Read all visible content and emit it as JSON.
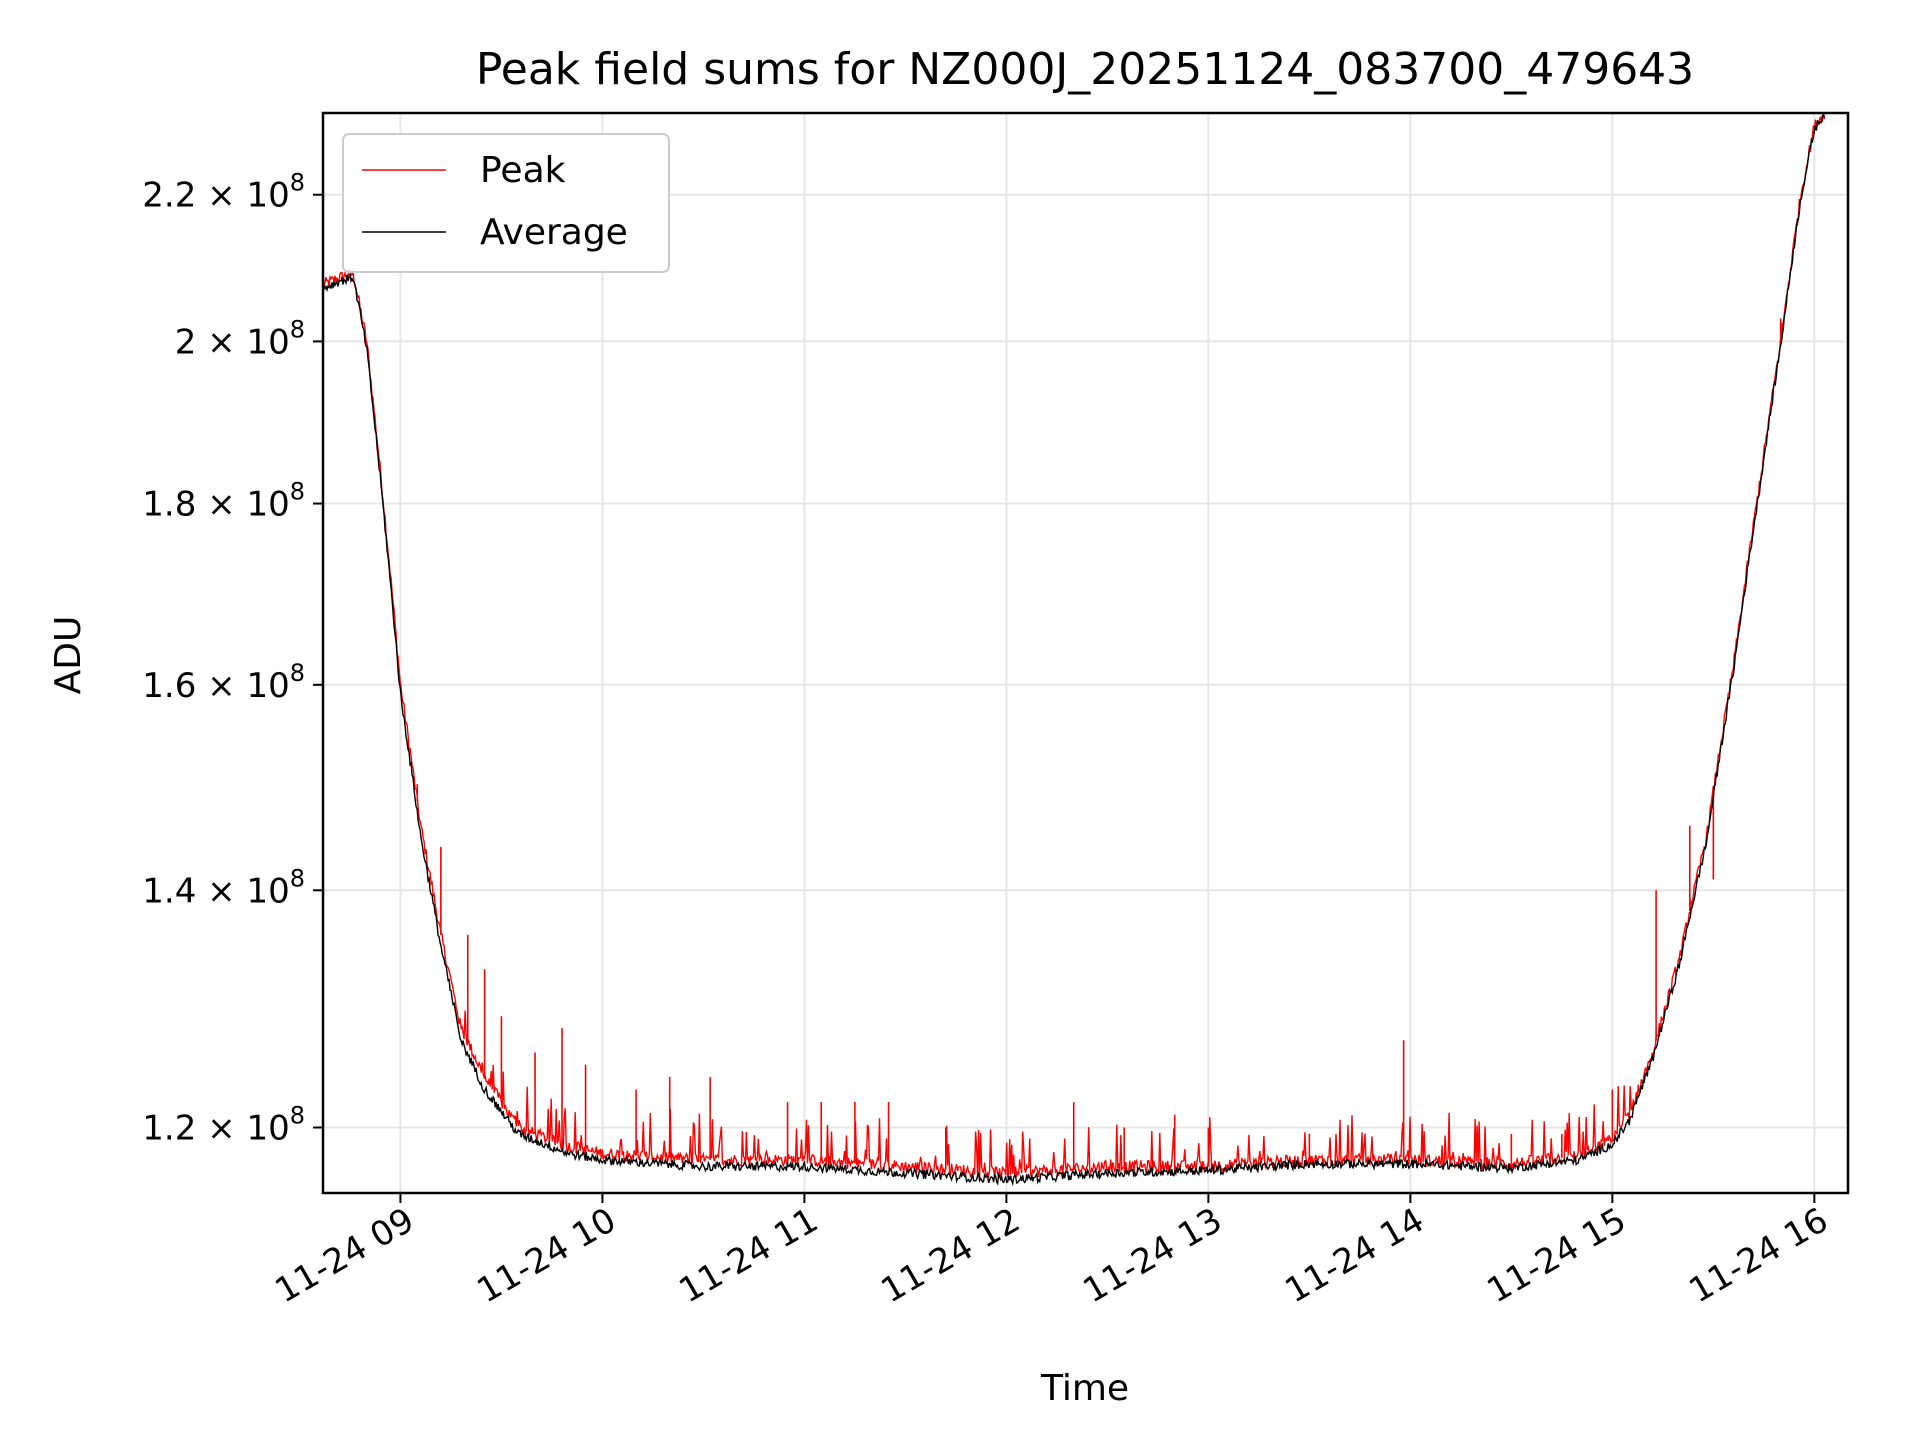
{
  "chart_data": {
    "type": "line",
    "title": "Peak field sums for NZ000J_20251124_083700_479643",
    "xlabel": "Time",
    "ylabel": "ADU",
    "yscale": "log",
    "grid": true,
    "legend_position": "top-left",
    "xlim": [
      "2025-11-24 08:37",
      "2025-11-24 16:10"
    ],
    "ylim": [
      115000000,
      232000000
    ],
    "x_ticks": [
      {
        "value": "2025-11-24 09:00",
        "label": "11-24 09"
      },
      {
        "value": "2025-11-24 10:00",
        "label": "11-24 10"
      },
      {
        "value": "2025-11-24 11:00",
        "label": "11-24 11"
      },
      {
        "value": "2025-11-24 12:00",
        "label": "11-24 12"
      },
      {
        "value": "2025-11-24 13:00",
        "label": "11-24 13"
      },
      {
        "value": "2025-11-24 14:00",
        "label": "11-24 14"
      },
      {
        "value": "2025-11-24 15:00",
        "label": "11-24 15"
      },
      {
        "value": "2025-11-24 16:00",
        "label": "11-24 16"
      }
    ],
    "y_ticks": [
      {
        "value": 120000000,
        "mantissa": "1.2",
        "exp": "8"
      },
      {
        "value": 140000000,
        "mantissa": "1.4",
        "exp": "8"
      },
      {
        "value": 160000000,
        "mantissa": "1.6",
        "exp": "8"
      },
      {
        "value": 180000000,
        "mantissa": "1.8",
        "exp": "8"
      },
      {
        "value": 200000000,
        "mantissa": "2",
        "exp": "8"
      },
      {
        "value": 220000000,
        "mantissa": "2.2",
        "exp": "8"
      }
    ],
    "series": [
      {
        "name": "Peak",
        "color": "#ff0000",
        "points": [
          [
            "2025-11-24 08:37",
            207500000
          ],
          [
            "2025-11-24 08:42",
            208500000
          ],
          [
            "2025-11-24 08:46",
            209000000
          ],
          [
            "2025-11-24 08:50",
            200000000
          ],
          [
            "2025-11-24 08:55",
            180000000
          ],
          [
            "2025-11-24 09:00",
            160000000
          ],
          [
            "2025-11-24 09:06",
            146000000
          ],
          [
            "2025-11-24 09:12",
            136000000
          ],
          [
            "2025-11-24 09:18",
            128000000
          ],
          [
            "2025-11-24 09:25",
            124000000
          ],
          [
            "2025-11-24 09:35",
            120000000
          ],
          [
            "2025-11-24 09:50",
            118500000
          ],
          [
            "2025-11-24 10:00",
            118000000
          ],
          [
            "2025-11-24 10:30",
            117500000
          ],
          [
            "2025-11-24 11:00",
            117500000
          ],
          [
            "2025-11-24 11:30",
            117000000
          ],
          [
            "2025-11-24 12:00",
            116500000
          ],
          [
            "2025-11-24 12:30",
            117000000
          ],
          [
            "2025-11-24 13:00",
            117000000
          ],
          [
            "2025-11-24 13:30",
            117500000
          ],
          [
            "2025-11-24 14:00",
            117500000
          ],
          [
            "2025-11-24 14:30",
            117200000
          ],
          [
            "2025-11-24 14:50",
            117800000
          ],
          [
            "2025-11-24 15:00",
            119000000
          ],
          [
            "2025-11-24 15:05",
            121000000
          ],
          [
            "2025-11-24 15:12",
            126000000
          ],
          [
            "2025-11-24 15:20",
            134000000
          ],
          [
            "2025-11-24 15:28",
            145000000
          ],
          [
            "2025-11-24 15:36",
            162000000
          ],
          [
            "2025-11-24 15:44",
            183000000
          ],
          [
            "2025-11-24 15:50",
            200000000
          ],
          [
            "2025-11-24 15:56",
            220000000
          ],
          [
            "2025-11-24 16:00",
            230000000
          ],
          [
            "2025-11-24 16:03",
            232000000
          ]
        ],
        "spikes": [
          [
            "2025-11-24 09:05",
            150000000
          ],
          [
            "2025-11-24 09:12",
            144000000
          ],
          [
            "2025-11-24 09:20",
            136000000
          ],
          [
            "2025-11-24 09:25",
            133000000
          ],
          [
            "2025-11-24 09:30",
            129000000
          ],
          [
            "2025-11-24 09:40",
            126000000
          ],
          [
            "2025-11-24 09:48",
            128000000
          ],
          [
            "2025-11-24 09:55",
            125000000
          ],
          [
            "2025-11-24 10:10",
            123000000
          ],
          [
            "2025-11-24 10:20",
            124000000
          ],
          [
            "2025-11-24 10:32",
            124000000
          ],
          [
            "2025-11-24 10:55",
            122000000
          ],
          [
            "2025-11-24 11:05",
            122000000
          ],
          [
            "2025-11-24 11:15",
            122000000
          ],
          [
            "2025-11-24 11:25",
            122000000
          ],
          [
            "2025-11-24 11:42",
            120000000
          ],
          [
            "2025-11-24 12:20",
            122000000
          ],
          [
            "2025-11-24 12:35",
            120000000
          ],
          [
            "2025-11-24 12:50",
            121000000
          ],
          [
            "2025-11-24 13:00",
            120000000
          ],
          [
            "2025-11-24 13:30",
            119500000
          ],
          [
            "2025-11-24 13:58",
            127000000
          ],
          [
            "2025-11-24 14:30",
            119500000
          ],
          [
            "2025-11-24 14:45",
            119500000
          ],
          [
            "2025-11-24 15:00",
            123000000
          ],
          [
            "2025-11-24 15:13",
            140000000
          ],
          [
            "2025-11-24 15:23",
            146000000
          ],
          [
            "2025-11-24 15:30",
            141000000
          ],
          [
            "2025-11-24 15:50",
            203000000
          ]
        ]
      },
      {
        "name": "Average",
        "color": "#000000",
        "points": [
          [
            "2025-11-24 08:37",
            207000000
          ],
          [
            "2025-11-24 08:42",
            208000000
          ],
          [
            "2025-11-24 08:46",
            208500000
          ],
          [
            "2025-11-24 08:50",
            199000000
          ],
          [
            "2025-11-24 08:55",
            179000000
          ],
          [
            "2025-11-24 09:00",
            159000000
          ],
          [
            "2025-11-24 09:06",
            145000000
          ],
          [
            "2025-11-24 09:12",
            135000000
          ],
          [
            "2025-11-24 09:18",
            127000000
          ],
          [
            "2025-11-24 09:25",
            123000000
          ],
          [
            "2025-11-24 09:35",
            119500000
          ],
          [
            "2025-11-24 09:50",
            118000000
          ],
          [
            "2025-11-24 10:00",
            117500000
          ],
          [
            "2025-11-24 10:30",
            117000000
          ],
          [
            "2025-11-24 11:00",
            117000000
          ],
          [
            "2025-11-24 11:30",
            116500000
          ],
          [
            "2025-11-24 12:00",
            116000000
          ],
          [
            "2025-11-24 12:30",
            116500000
          ],
          [
            "2025-11-24 13:00",
            116700000
          ],
          [
            "2025-11-24 13:30",
            117200000
          ],
          [
            "2025-11-24 14:00",
            117200000
          ],
          [
            "2025-11-24 14:30",
            116900000
          ],
          [
            "2025-11-24 14:50",
            117500000
          ],
          [
            "2025-11-24 15:00",
            118700000
          ],
          [
            "2025-11-24 15:05",
            120500000
          ],
          [
            "2025-11-24 15:12",
            125500000
          ],
          [
            "2025-11-24 15:20",
            133500000
          ],
          [
            "2025-11-24 15:28",
            144500000
          ],
          [
            "2025-11-24 15:36",
            161500000
          ],
          [
            "2025-11-24 15:44",
            182500000
          ],
          [
            "2025-11-24 15:50",
            199500000
          ],
          [
            "2025-11-24 15:56",
            219500000
          ],
          [
            "2025-11-24 16:00",
            229500000
          ],
          [
            "2025-11-24 16:03",
            232000000
          ]
        ]
      }
    ]
  }
}
